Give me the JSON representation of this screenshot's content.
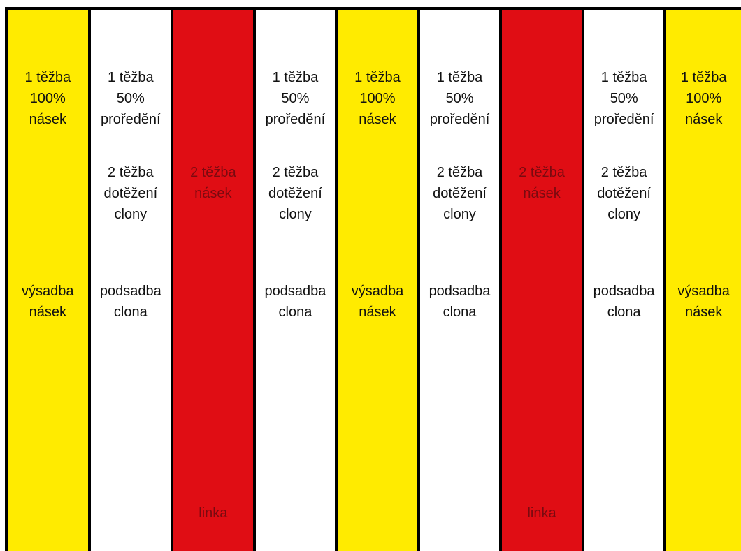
{
  "colors": {
    "yellow": "#ffeb00",
    "white": "#ffffff",
    "red": "#e00d14",
    "border": "#000000"
  },
  "strips": [
    {
      "color": "yellow",
      "top": [
        "1 těžba",
        "100%",
        "násek"
      ],
      "low": [
        "výsadba",
        "násek"
      ]
    },
    {
      "color": "white",
      "top": [
        "1 těžba",
        "50%",
        "proředění"
      ],
      "mid": [
        "2 těžba",
        "dotěžení",
        "clony"
      ],
      "low": [
        "podsadba",
        "clona"
      ]
    },
    {
      "color": "red",
      "mid": [
        "2 těžba",
        "násek"
      ],
      "bottom": [
        "linka"
      ]
    },
    {
      "color": "white",
      "top": [
        "1 těžba",
        "50%",
        "proředění"
      ],
      "mid": [
        "2 těžba",
        "dotěžení",
        "clony"
      ],
      "low": [
        "podsadba",
        "clona"
      ]
    },
    {
      "color": "yellow",
      "top": [
        "1 těžba",
        "100%",
        "násek"
      ],
      "low": [
        "výsadba",
        "násek"
      ]
    },
    {
      "color": "white",
      "top": [
        "1 těžba",
        "50%",
        "proředění"
      ],
      "mid": [
        "2 těžba",
        "dotěžení",
        "clony"
      ],
      "low": [
        "podsadba",
        "clona"
      ]
    },
    {
      "color": "red",
      "mid": [
        "2 těžba",
        "násek"
      ],
      "bottom": [
        "linka"
      ]
    },
    {
      "color": "white",
      "top": [
        "1 těžba",
        "50%",
        "proředění"
      ],
      "mid": [
        "2 těžba",
        "dotěžení",
        "clony"
      ],
      "low": [
        "podsadba",
        "clona"
      ]
    },
    {
      "color": "yellow",
      "top": [
        "1 těžba",
        "100%",
        "násek"
      ],
      "low": [
        "výsadba",
        "násek"
      ]
    }
  ]
}
